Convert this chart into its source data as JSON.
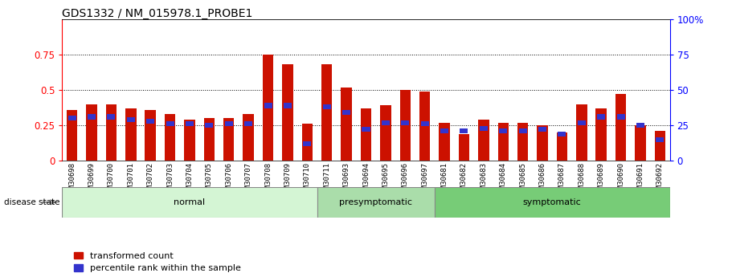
{
  "title": "GDS1332 / NM_015978.1_PROBE1",
  "samples": [
    "GSM30698",
    "GSM30699",
    "GSM30700",
    "GSM30701",
    "GSM30702",
    "GSM30703",
    "GSM30704",
    "GSM30705",
    "GSM30706",
    "GSM30707",
    "GSM30708",
    "GSM30709",
    "GSM30710",
    "GSM30711",
    "GSM30693",
    "GSM30694",
    "GSM30695",
    "GSM30696",
    "GSM30697",
    "GSM30681",
    "GSM30682",
    "GSM30683",
    "GSM30684",
    "GSM30685",
    "GSM30686",
    "GSM30687",
    "GSM30688",
    "GSM30689",
    "GSM30690",
    "GSM30691",
    "GSM30692"
  ],
  "red_values": [
    0.36,
    0.4,
    0.4,
    0.37,
    0.36,
    0.33,
    0.29,
    0.3,
    0.3,
    0.33,
    0.75,
    0.68,
    0.26,
    0.68,
    0.52,
    0.37,
    0.39,
    0.5,
    0.49,
    0.27,
    0.19,
    0.29,
    0.27,
    0.27,
    0.25,
    0.2,
    0.4,
    0.37,
    0.47,
    0.25,
    0.21
  ],
  "blue_values": [
    0.3,
    0.31,
    0.31,
    0.29,
    0.28,
    0.26,
    0.26,
    0.25,
    0.26,
    0.26,
    0.39,
    0.39,
    0.12,
    0.38,
    0.34,
    0.22,
    0.27,
    0.27,
    0.26,
    0.21,
    0.21,
    0.23,
    0.21,
    0.21,
    0.22,
    0.19,
    0.27,
    0.31,
    0.31,
    0.25,
    0.15
  ],
  "groups": [
    {
      "label": "normal",
      "start": 0,
      "end": 13,
      "color": "#d4f5d4"
    },
    {
      "label": "presymptomatic",
      "start": 13,
      "end": 19,
      "color": "#aaddaa"
    },
    {
      "label": "symptomatic",
      "start": 19,
      "end": 31,
      "color": "#77cc77"
    }
  ],
  "ylim_left": [
    0,
    1.0
  ],
  "ylim_right": [
    0,
    100
  ],
  "yticks_left": [
    0,
    0.25,
    0.5,
    0.75
  ],
  "ytick_left_top": 1.0,
  "yticks_right": [
    0,
    25,
    50,
    75,
    100
  ],
  "bar_color_red": "#cc1100",
  "bar_color_blue": "#3333cc",
  "xtick_bg_color": "#c8c8c8",
  "background_color": "#ffffff",
  "disease_state_label": "disease state",
  "legend_red": "transformed count",
  "legend_blue": "percentile rank within the sample",
  "bar_width": 0.55
}
